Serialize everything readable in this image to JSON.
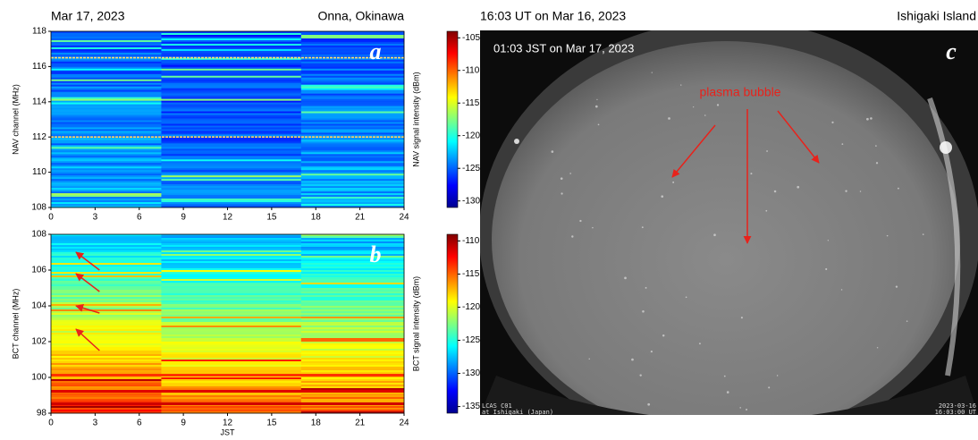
{
  "chart_data": [
    {
      "type": "heatmap",
      "panel_label": "a",
      "date": "Mar 17, 2023",
      "location": "Onna, Okinawa",
      "ylabel": "NAV channel (MHz)",
      "colorbar_label": "NAV signal intensity (dBm)",
      "xlim": [
        0,
        24
      ],
      "xticks": [
        0,
        3,
        6,
        9,
        12,
        15,
        18,
        21,
        24
      ],
      "ylim": [
        108,
        118
      ],
      "yticks": [
        108,
        110,
        112,
        114,
        116,
        118
      ],
      "clim": [
        -131,
        -104
      ],
      "cticks": [
        -130,
        -125,
        -120,
        -115,
        -110,
        -105
      ]
    },
    {
      "type": "heatmap",
      "panel_label": "b",
      "xlabel": "JST",
      "ylabel": "BCT channel (MHz)",
      "colorbar_label": "BCT signal intensity (dBm)",
      "xlim": [
        0,
        24
      ],
      "xticks": [
        0,
        3,
        6,
        9,
        12,
        15,
        18,
        21,
        24
      ],
      "ylim": [
        98,
        108
      ],
      "yticks": [
        98,
        100,
        102,
        104,
        106,
        108
      ],
      "clim": [
        -136,
        -109
      ],
      "cticks": [
        -135,
        -130,
        -125,
        -120,
        -115,
        -110
      ]
    }
  ],
  "image": {
    "title": "16:03 UT on Mar 16, 2023",
    "location": "Ishigaki Island",
    "timestamp": "01:03 JST on Mar 17, 2023",
    "panel_label": "c",
    "annotation": "plasma bubble",
    "caption_left": [
      "LCAS C01",
      "at Ishigaki (Japan)"
    ],
    "caption_right": [
      "2023-03-16",
      "16:03:00 UT"
    ]
  }
}
